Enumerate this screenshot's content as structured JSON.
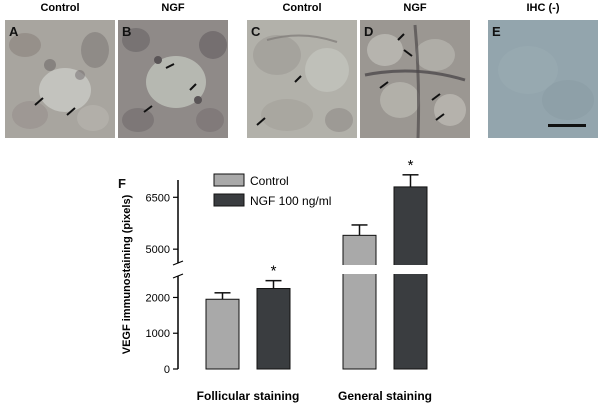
{
  "panels": [
    {
      "letter": "A",
      "label": "Control"
    },
    {
      "letter": "B",
      "label": "NGF"
    },
    {
      "letter": "C",
      "label": "Control"
    },
    {
      "letter": "D",
      "label": "NGF"
    },
    {
      "letter": "E",
      "label": "IHC (-)"
    }
  ],
  "chart_panel_letter": "F",
  "chart_data": {
    "type": "bar",
    "categories": [
      "Follicular staining",
      "General staining"
    ],
    "series": [
      {
        "name": "Control",
        "values": [
          1950,
          5400
        ],
        "errors": [
          180,
          300
        ],
        "color": "#a9a9a9"
      },
      {
        "name": "NGF 100 ng/ml",
        "values": [
          2250,
          6800
        ],
        "errors": [
          220,
          350
        ],
        "color": "#3a3d40"
      }
    ],
    "significance": [
      {
        "category": "Follicular staining",
        "series": "NGF 100 ng/ml",
        "mark": "*"
      },
      {
        "category": "General staining",
        "series": "NGF 100 ng/ml",
        "mark": "*"
      }
    ],
    "ylabel": "VEGF immunostaining (pixels)",
    "ylim": [
      0,
      7000
    ],
    "axis_break": [
      2600,
      4600
    ],
    "yticks": [
      0,
      1000,
      2000,
      5000,
      6500
    ],
    "legend_position": "top-left",
    "grid": false
  }
}
